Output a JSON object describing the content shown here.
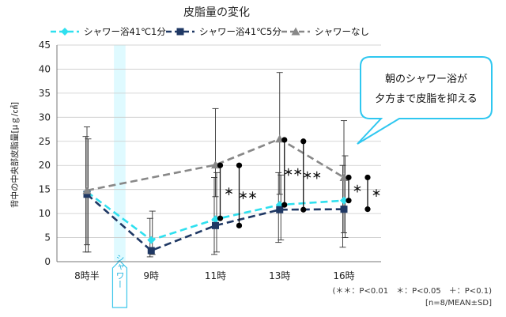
{
  "chart_data": {
    "type": "line",
    "title": "皮脂量の変化",
    "ylabel": "背中の中央部皮脂量[μｇ/㎠]",
    "xlabel": "",
    "categories": [
      "8時半",
      "9時",
      "11時",
      "13時",
      "16時"
    ],
    "x_positions": [
      0,
      1,
      2,
      3,
      4
    ],
    "ylim": [
      0,
      45
    ],
    "yticks": [
      0,
      5,
      10,
      15,
      20,
      25,
      30,
      35,
      40,
      45
    ],
    "grid": "horizontal",
    "legend_position": "top",
    "series": [
      {
        "name": "シャワー浴41℃1分",
        "color": "#2fe0ef",
        "marker": "diamond",
        "values": [
          14.5,
          4.5,
          8.8,
          11.8,
          12.7
        ],
        "err_low": [
          2.0,
          1.5,
          2.0,
          4.5,
          5.0
        ],
        "err_high": [
          25.5,
          10.5,
          18.5,
          18.0,
          22.0
        ]
      },
      {
        "name": "シャワー浴41℃5分",
        "color": "#1f3864",
        "marker": "square",
        "values": [
          14.0,
          2.3,
          7.5,
          10.8,
          10.9
        ],
        "err_low": [
          2.0,
          1.0,
          1.5,
          4.0,
          3.0
        ],
        "err_high": [
          26.0,
          9.0,
          17.5,
          18.5,
          20.0
        ]
      },
      {
        "name": "シャワーなし",
        "color": "#888888",
        "marker": "triangle",
        "values": [
          14.8,
          null,
          20.1,
          25.5,
          17.5
        ],
        "err_low": [
          3.5,
          null,
          13.5,
          14.0,
          6.0
        ],
        "err_high": [
          28.0,
          null,
          31.8,
          39.3,
          29.3
        ]
      }
    ],
    "annotation_band": {
      "x_from": 0.42,
      "x_to": 0.6,
      "label": "シャワー",
      "color": "#dffaff"
    },
    "significance": [
      {
        "x": 2,
        "y_top": 20.0,
        "y_bottom": 9.0,
        "label": "＊"
      },
      {
        "x": 2,
        "y_top": 20.0,
        "y_bottom": 7.5,
        "label": "＊＊"
      },
      {
        "x": 3,
        "y_top": 25.3,
        "y_bottom": 11.8,
        "label": "＊＊"
      },
      {
        "x": 3,
        "y_top": 25.0,
        "y_bottom": 10.8,
        "label": "＊＊"
      },
      {
        "x": 4,
        "y_top": 17.5,
        "y_bottom": 12.7,
        "label": "＊"
      },
      {
        "x": 4,
        "y_top": 17.5,
        "y_bottom": 10.9,
        "label": "＊"
      }
    ],
    "callout": {
      "line1": "朝のシャワー浴が",
      "line2": "夕方まで皮脂を抑える"
    },
    "footnote": {
      "line1": "(＊＊：P<0.01　＊：P<0.05　＋：P<0.1)",
      "line2": "[n=8/MEAN±SD]"
    }
  }
}
